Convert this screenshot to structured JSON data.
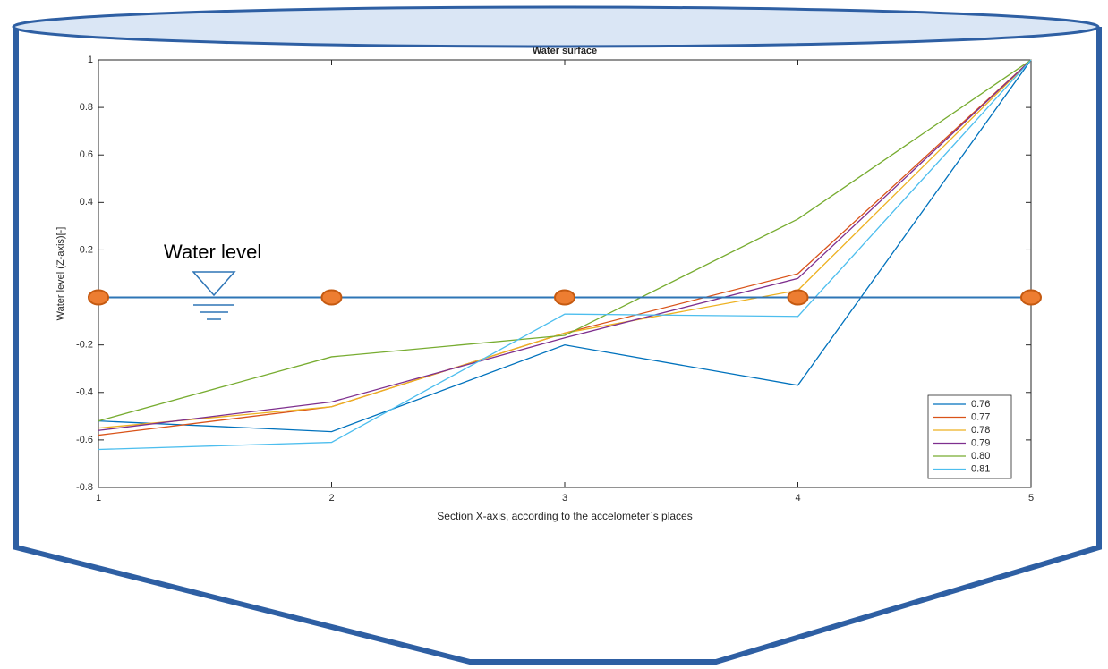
{
  "chart_data": {
    "type": "line",
    "title": "Water surface",
    "xlabel": "Section X-axis, according to the accelometer`s places",
    "ylabel": "Water level (Z-axis)[-]",
    "x": [
      1,
      2,
      3,
      4,
      5
    ],
    "xlim": [
      1,
      5
    ],
    "xticks": [
      1,
      2,
      3,
      4,
      5
    ],
    "ylim": [
      -0.8,
      1
    ],
    "yticks": [
      -0.8,
      -0.6,
      -0.4,
      -0.2,
      0,
      0.2,
      0.4,
      0.6,
      0.8,
      1
    ],
    "legend": "lower right",
    "series": [
      {
        "name": "0.76",
        "color": "#0072bd",
        "values": [
          -0.52,
          -0.565,
          -0.2,
          -0.37,
          1
        ]
      },
      {
        "name": "0.77",
        "color": "#d95319",
        "values": [
          -0.58,
          -0.46,
          -0.15,
          0.1,
          1
        ]
      },
      {
        "name": "0.78",
        "color": "#edb120",
        "values": [
          -0.55,
          -0.46,
          -0.15,
          0.03,
          1
        ]
      },
      {
        "name": "0.79",
        "color": "#7e2f8e",
        "values": [
          -0.56,
          -0.44,
          -0.17,
          0.08,
          1
        ]
      },
      {
        "name": "0.80",
        "color": "#77ac30",
        "values": [
          -0.52,
          -0.25,
          -0.16,
          0.33,
          1
        ]
      },
      {
        "name": "0.81",
        "color": "#4dbeee",
        "values": [
          -0.64,
          -0.61,
          -0.07,
          -0.08,
          1
        ]
      }
    ],
    "reference_line": {
      "label": "Water level",
      "color": "#2e75b6",
      "marker_color": "#ed7d31",
      "values": [
        0,
        0,
        0,
        0,
        0
      ]
    }
  }
}
